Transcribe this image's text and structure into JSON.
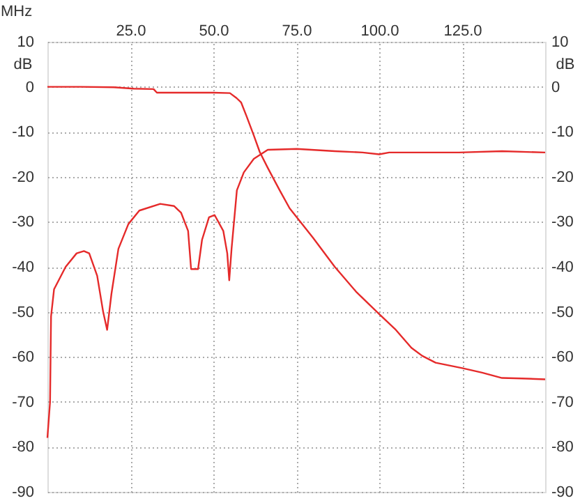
{
  "chart_data": {
    "type": "line",
    "xlabel": "MHz",
    "ylabel": "dB",
    "y2label": "dB",
    "xlim": [
      0,
      150
    ],
    "xticks": [
      {
        "value": 25,
        "label": "25.0"
      },
      {
        "value": 50,
        "label": "50.0"
      },
      {
        "value": 75,
        "label": "75.0"
      },
      {
        "value": 100,
        "label": "100.0"
      },
      {
        "value": 125,
        "label": "125.0"
      }
    ],
    "ylim": [
      -90,
      10
    ],
    "yticks": [
      10,
      0,
      -10,
      -20,
      -30,
      -40,
      -50,
      -60,
      -70,
      -80,
      -90
    ],
    "y2lim": [
      -90,
      10
    ],
    "y2ticks": [
      10,
      0,
      -10,
      -20,
      -30,
      -40,
      -50,
      -60,
      -70,
      -80,
      -90
    ],
    "grid": true,
    "marker": "none",
    "line_style": "solid",
    "series": [
      {
        "color": "#e52a2a",
        "x": [
          0,
          10,
          20,
          26,
          32,
          33,
          40,
          50,
          55,
          57,
          58.4,
          60,
          62.2,
          64,
          66.4,
          70,
          73,
          80,
          86.6,
          93,
          100,
          105,
          109.7,
          113,
          117,
          125,
          131,
          137,
          143,
          150
        ],
        "values": [
          0,
          0,
          -0.1,
          -0.4,
          -0.5,
          -1.3,
          -1.3,
          -1.3,
          -1.4,
          -2.5,
          -3.5,
          -6.5,
          -10.8,
          -14.5,
          -18,
          -23,
          -27,
          -33.5,
          -40,
          -45.5,
          -50.5,
          -54,
          -58,
          -59.8,
          -61.3,
          -62.5,
          -63.5,
          -64.7,
          -64.8,
          -65
        ]
      },
      {
        "color": "#e52a2a",
        "x": [
          0,
          0.8,
          1.1,
          2,
          5.5,
          8.8,
          11,
          12.6,
          15,
          16.8,
          18,
          19.3,
          21.4,
          24.4,
          27.7,
          34,
          38.2,
          40.3,
          42.4,
          43.3,
          45.4,
          46.6,
          48.7,
          50.4,
          53,
          54.2,
          54.8,
          55.5,
          57.1,
          59.2,
          62.2,
          66.4,
          75.2,
          86.6,
          95,
          100,
          103,
          124,
          137,
          150
        ],
        "values": [
          -78,
          -70,
          -51,
          -45,
          -40,
          -37,
          -36.5,
          -37,
          -42,
          -50,
          -54,
          -46,
          -36,
          -30.5,
          -27.5,
          -26,
          -26.5,
          -28,
          -32,
          -40.5,
          -40.5,
          -34,
          -29,
          -28.5,
          -32,
          -37,
          -43,
          -36,
          -23,
          -19,
          -16,
          -14,
          -13.8,
          -14.3,
          -14.6,
          -15,
          -14.6,
          -14.6,
          -14.3,
          -14.6
        ]
      }
    ]
  }
}
